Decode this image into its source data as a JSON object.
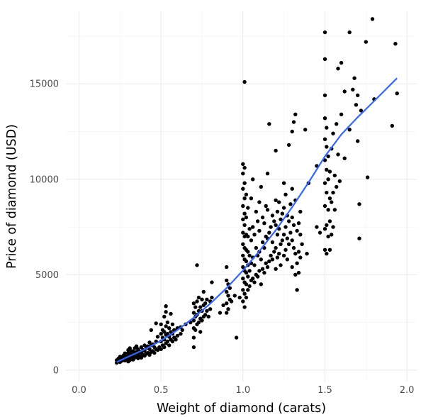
{
  "chart_data": {
    "type": "scatter",
    "title": "",
    "xlabel": "Weight of diamond (carats)",
    "ylabel": "Price of diamond (USD)",
    "xlim": [
      -0.08,
      2.06
    ],
    "ylim": [
      -600,
      18800
    ],
    "x_ticks": [
      0.0,
      0.5,
      1.0,
      1.5,
      2.0
    ],
    "x_tick_labels": [
      "0.0",
      "0.5",
      "1.0",
      "1.5",
      "2.0"
    ],
    "y_ticks": [
      0,
      5000,
      10000,
      15000
    ],
    "y_tick_labels": [
      "0",
      "5000",
      "10000",
      "15000"
    ],
    "grid": true,
    "legend": "none",
    "point_color": "#000000",
    "smooth_color": "#3366ff",
    "points": [
      [
        0.23,
        380
      ],
      [
        0.23,
        520
      ],
      [
        0.24,
        460
      ],
      [
        0.24,
        600
      ],
      [
        0.25,
        420
      ],
      [
        0.25,
        560
      ],
      [
        0.25,
        700
      ],
      [
        0.26,
        480
      ],
      [
        0.26,
        640
      ],
      [
        0.27,
        520
      ],
      [
        0.27,
        760
      ],
      [
        0.28,
        500
      ],
      [
        0.28,
        650
      ],
      [
        0.28,
        880
      ],
      [
        0.29,
        560
      ],
      [
        0.29,
        720
      ],
      [
        0.3,
        450
      ],
      [
        0.3,
        600
      ],
      [
        0.3,
        750
      ],
      [
        0.3,
        900
      ],
      [
        0.3,
        1050
      ],
      [
        0.31,
        520
      ],
      [
        0.31,
        700
      ],
      [
        0.31,
        950
      ],
      [
        0.31,
        1150
      ],
      [
        0.32,
        600
      ],
      [
        0.32,
        800
      ],
      [
        0.32,
        1000
      ],
      [
        0.33,
        550
      ],
      [
        0.33,
        760
      ],
      [
        0.33,
        980
      ],
      [
        0.34,
        650
      ],
      [
        0.34,
        880
      ],
      [
        0.34,
        1150
      ],
      [
        0.35,
        700
      ],
      [
        0.35,
        950
      ],
      [
        0.35,
        1250
      ],
      [
        0.36,
        620
      ],
      [
        0.36,
        840
      ],
      [
        0.36,
        1100
      ],
      [
        0.37,
        720
      ],
      [
        0.37,
        980
      ],
      [
        0.38,
        650
      ],
      [
        0.38,
        900
      ],
      [
        0.38,
        1200
      ],
      [
        0.39,
        800
      ],
      [
        0.39,
        1050
      ],
      [
        0.4,
        750
      ],
      [
        0.4,
        1000
      ],
      [
        0.4,
        1300
      ],
      [
        0.41,
        850
      ],
      [
        0.41,
        1150
      ],
      [
        0.42,
        900
      ],
      [
        0.42,
        1250
      ],
      [
        0.43,
        800
      ],
      [
        0.43,
        1100
      ],
      [
        0.43,
        1450
      ],
      [
        0.44,
        950
      ],
      [
        0.44,
        1300
      ],
      [
        0.45,
        1000
      ],
      [
        0.45,
        1350
      ],
      [
        0.46,
        900
      ],
      [
        0.46,
        1200
      ],
      [
        0.47,
        1100
      ],
      [
        0.47,
        1500
      ],
      [
        0.48,
        1050
      ],
      [
        0.49,
        1200
      ],
      [
        0.5,
        1100
      ],
      [
        0.5,
        1500
      ],
      [
        0.5,
        1900
      ],
      [
        0.5,
        2400
      ],
      [
        0.51,
        1300
      ],
      [
        0.51,
        1700
      ],
      [
        0.51,
        2100
      ],
      [
        0.52,
        1200
      ],
      [
        0.52,
        1600
      ],
      [
        0.52,
        2000
      ],
      [
        0.53,
        1400
      ],
      [
        0.53,
        1850
      ],
      [
        0.53,
        2300
      ],
      [
        0.54,
        1500
      ],
      [
        0.54,
        1900
      ],
      [
        0.54,
        2500
      ],
      [
        0.55,
        1300
      ],
      [
        0.55,
        1750
      ],
      [
        0.55,
        2200
      ],
      [
        0.56,
        1600
      ],
      [
        0.56,
        2000
      ],
      [
        0.57,
        1500
      ],
      [
        0.57,
        1900
      ],
      [
        0.57,
        2400
      ],
      [
        0.58,
        1700
      ],
      [
        0.58,
        2100
      ],
      [
        0.59,
        1600
      ],
      [
        0.6,
        1800
      ],
      [
        0.6,
        2200
      ],
      [
        0.52,
        2800
      ],
      [
        0.53,
        3350
      ],
      [
        0.56,
        2950
      ],
      [
        0.47,
        2450
      ],
      [
        0.44,
        2100
      ],
      [
        0.48,
        1750
      ],
      [
        0.53,
        3050
      ],
      [
        0.62,
        1900
      ],
      [
        0.62,
        2250
      ],
      [
        0.63,
        2100
      ],
      [
        0.65,
        2400
      ],
      [
        0.68,
        2500
      ],
      [
        0.7,
        1700
      ],
      [
        0.7,
        2200
      ],
      [
        0.7,
        2600
      ],
      [
        0.7,
        3000
      ],
      [
        0.7,
        3500
      ],
      [
        0.71,
        2100
      ],
      [
        0.71,
        2800
      ],
      [
        0.71,
        3300
      ],
      [
        0.72,
        2400
      ],
      [
        0.72,
        2900
      ],
      [
        0.72,
        3600
      ],
      [
        0.73,
        2500
      ],
      [
        0.73,
        3100
      ],
      [
        0.73,
        3800
      ],
      [
        0.74,
        2700
      ],
      [
        0.74,
        3300
      ],
      [
        0.75,
        2600
      ],
      [
        0.75,
        3100
      ],
      [
        0.75,
        3700
      ],
      [
        0.76,
        2800
      ],
      [
        0.76,
        3400
      ],
      [
        0.77,
        2900
      ],
      [
        0.77,
        3500
      ],
      [
        0.78,
        3100
      ],
      [
        0.78,
        3700
      ],
      [
        0.79,
        2800
      ],
      [
        0.8,
        3200
      ],
      [
        0.8,
        3600
      ],
      [
        0.72,
        5500
      ],
      [
        0.7,
        1200
      ],
      [
        0.74,
        2000
      ],
      [
        0.76,
        4100
      ],
      [
        0.81,
        3800
      ],
      [
        0.81,
        4600
      ],
      [
        0.86,
        3000
      ],
      [
        0.88,
        3400
      ],
      [
        0.9,
        3000
      ],
      [
        0.9,
        3500
      ],
      [
        0.9,
        4100
      ],
      [
        0.9,
        4700
      ],
      [
        0.9,
        5400
      ],
      [
        0.91,
        3200
      ],
      [
        0.91,
        3900
      ],
      [
        0.91,
        4500
      ],
      [
        0.92,
        3700
      ],
      [
        0.92,
        4300
      ],
      [
        0.93,
        3600
      ],
      [
        0.95,
        3900
      ],
      [
        0.96,
        1700
      ],
      [
        0.98,
        3800
      ],
      [
        1.0,
        3600
      ],
      [
        1.0,
        4200
      ],
      [
        1.0,
        4800
      ],
      [
        1.0,
        5400
      ],
      [
        1.0,
        6000
      ],
      [
        1.0,
        6600
      ],
      [
        1.0,
        7200
      ],
      [
        1.0,
        7900
      ],
      [
        1.0,
        8600
      ],
      [
        1.0,
        9500
      ],
      [
        1.0,
        10300
      ],
      [
        1.0,
        10800
      ],
      [
        1.01,
        3300
      ],
      [
        1.01,
        4000
      ],
      [
        1.01,
        4600
      ],
      [
        1.01,
        5200
      ],
      [
        1.01,
        5800
      ],
      [
        1.01,
        6400
      ],
      [
        1.01,
        7000
      ],
      [
        1.01,
        7600
      ],
      [
        1.01,
        8200
      ],
      [
        1.01,
        9000
      ],
      [
        1.01,
        9800
      ],
      [
        1.01,
        10600
      ],
      [
        1.01,
        15100
      ],
      [
        1.02,
        3800
      ],
      [
        1.02,
        4500
      ],
      [
        1.02,
        5100
      ],
      [
        1.02,
        5700
      ],
      [
        1.02,
        6300
      ],
      [
        1.02,
        7100
      ],
      [
        1.02,
        8000
      ],
      [
        1.02,
        9200
      ],
      [
        1.03,
        4200
      ],
      [
        1.03,
        4900
      ],
      [
        1.03,
        5500
      ],
      [
        1.03,
        6200
      ],
      [
        1.03,
        7000
      ],
      [
        1.03,
        8500
      ],
      [
        1.04,
        4400
      ],
      [
        1.04,
        5200
      ],
      [
        1.04,
        6000
      ],
      [
        1.04,
        7400
      ],
      [
        1.05,
        4700
      ],
      [
        1.05,
        5600
      ],
      [
        1.05,
        6800
      ],
      [
        1.05,
        9000
      ],
      [
        1.06,
        4800
      ],
      [
        1.06,
        5900
      ],
      [
        1.06,
        7500
      ],
      [
        1.06,
        10000
      ],
      [
        1.07,
        4600
      ],
      [
        1.07,
        5500
      ],
      [
        1.07,
        7100
      ],
      [
        1.08,
        5000
      ],
      [
        1.08,
        6400
      ],
      [
        1.08,
        8300
      ],
      [
        1.09,
        4900
      ],
      [
        1.09,
        6000
      ],
      [
        1.09,
        7800
      ],
      [
        1.1,
        5200
      ],
      [
        1.1,
        6200
      ],
      [
        1.1,
        7300
      ],
      [
        1.1,
        8800
      ],
      [
        1.11,
        4500
      ],
      [
        1.11,
        5800
      ],
      [
        1.11,
        9600
      ],
      [
        1.12,
        5300
      ],
      [
        1.12,
        6700
      ],
      [
        1.12,
        8000
      ],
      [
        1.13,
        5100
      ],
      [
        1.13,
        6400
      ],
      [
        1.13,
        7700
      ],
      [
        1.14,
        5600
      ],
      [
        1.14,
        7000
      ],
      [
        1.14,
        8600
      ],
      [
        1.15,
        5400
      ],
      [
        1.15,
        6900
      ],
      [
        1.15,
        8400
      ],
      [
        1.15,
        10300
      ],
      [
        1.16,
        5700
      ],
      [
        1.16,
        7200
      ],
      [
        1.16,
        12900
      ],
      [
        1.17,
        6000
      ],
      [
        1.17,
        7500
      ],
      [
        1.18,
        5800
      ],
      [
        1.18,
        6700
      ],
      [
        1.18,
        8100
      ],
      [
        1.19,
        6200
      ],
      [
        1.19,
        7800
      ],
      [
        1.2,
        5300
      ],
      [
        1.2,
        6400
      ],
      [
        1.2,
        7600
      ],
      [
        1.2,
        8900
      ],
      [
        1.2,
        11500
      ],
      [
        1.21,
        5900
      ],
      [
        1.21,
        7100
      ],
      [
        1.21,
        8300
      ],
      [
        1.22,
        6100
      ],
      [
        1.22,
        7400
      ],
      [
        1.22,
        8800
      ],
      [
        1.23,
        5500
      ],
      [
        1.23,
        6600
      ],
      [
        1.23,
        7900
      ],
      [
        1.24,
        6800
      ],
      [
        1.24,
        8200
      ],
      [
        1.25,
        6000
      ],
      [
        1.25,
        7100
      ],
      [
        1.25,
        8500
      ],
      [
        1.25,
        9800
      ],
      [
        1.26,
        6300
      ],
      [
        1.26,
        7500
      ],
      [
        1.26,
        9200
      ],
      [
        1.27,
        5800
      ],
      [
        1.27,
        6900
      ],
      [
        1.27,
        8100
      ],
      [
        1.28,
        6600
      ],
      [
        1.28,
        7800
      ],
      [
        1.28,
        11800
      ],
      [
        1.29,
        7200
      ],
      [
        1.29,
        8700
      ],
      [
        1.3,
        5400
      ],
      [
        1.3,
        6800
      ],
      [
        1.3,
        8000
      ],
      [
        1.3,
        9500
      ],
      [
        1.3,
        12500
      ],
      [
        1.31,
        6400
      ],
      [
        1.31,
        7600
      ],
      [
        1.31,
        13000
      ],
      [
        1.32,
        5000
      ],
      [
        1.32,
        6100
      ],
      [
        1.32,
        8900
      ],
      [
        1.32,
        13400
      ],
      [
        1.33,
        5600
      ],
      [
        1.33,
        7300
      ],
      [
        1.33,
        4200
      ],
      [
        1.34,
        6200
      ],
      [
        1.34,
        7700
      ],
      [
        1.34,
        5100
      ],
      [
        1.35,
        5900
      ],
      [
        1.35,
        7100
      ],
      [
        1.35,
        8300
      ],
      [
        1.36,
        6600
      ],
      [
        1.38,
        12600
      ],
      [
        1.39,
        6100
      ],
      [
        1.4,
        9800
      ],
      [
        1.45,
        10700
      ],
      [
        1.45,
        7500
      ],
      [
        1.47,
        7200
      ],
      [
        1.5,
        6300
      ],
      [
        1.5,
        7400
      ],
      [
        1.5,
        8600
      ],
      [
        1.5,
        9800
      ],
      [
        1.5,
        11000
      ],
      [
        1.5,
        12100
      ],
      [
        1.5,
        13200
      ],
      [
        1.5,
        14400
      ],
      [
        1.5,
        16300
      ],
      [
        1.5,
        17700
      ],
      [
        1.51,
        6100
      ],
      [
        1.51,
        7600
      ],
      [
        1.51,
        9300
      ],
      [
        1.51,
        10500
      ],
      [
        1.51,
        11700
      ],
      [
        1.51,
        12700
      ],
      [
        1.52,
        7000
      ],
      [
        1.52,
        8400
      ],
      [
        1.52,
        10000
      ],
      [
        1.52,
        11200
      ],
      [
        1.53,
        6300
      ],
      [
        1.53,
        7800
      ],
      [
        1.53,
        9000
      ],
      [
        1.53,
        10400
      ],
      [
        1.54,
        7100
      ],
      [
        1.54,
        8800
      ],
      [
        1.54,
        11600
      ],
      [
        1.55,
        7500
      ],
      [
        1.55,
        9300
      ],
      [
        1.55,
        12400
      ],
      [
        1.56,
        8400
      ],
      [
        1.56,
        10200
      ],
      [
        1.57,
        9600
      ],
      [
        1.57,
        12900
      ],
      [
        1.58,
        11300
      ],
      [
        1.58,
        15800
      ],
      [
        1.59,
        9900
      ],
      [
        1.6,
        13400
      ],
      [
        1.6,
        16100
      ],
      [
        1.62,
        11100
      ],
      [
        1.62,
        14600
      ],
      [
        1.65,
        12600
      ],
      [
        1.65,
        17700
      ],
      [
        1.67,
        14700
      ],
      [
        1.68,
        15300
      ],
      [
        1.69,
        13900
      ],
      [
        1.7,
        12000
      ],
      [
        1.7,
        14400
      ],
      [
        1.71,
        6900
      ],
      [
        1.71,
        8700
      ],
      [
        1.72,
        13600
      ],
      [
        1.75,
        17200
      ],
      [
        1.76,
        10100
      ],
      [
        1.79,
        18400
      ],
      [
        1.8,
        14200
      ],
      [
        1.91,
        12800
      ],
      [
        1.93,
        17100
      ],
      [
        1.94,
        14500
      ]
    ],
    "smooth_line": [
      [
        0.23,
        420
      ],
      [
        0.3,
        700
      ],
      [
        0.4,
        1080
      ],
      [
        0.5,
        1540
      ],
      [
        0.6,
        2100
      ],
      [
        0.7,
        2750
      ],
      [
        0.8,
        3480
      ],
      [
        0.9,
        4300
      ],
      [
        1.0,
        5220
      ],
      [
        1.1,
        6230
      ],
      [
        1.2,
        7330
      ],
      [
        1.3,
        8540
      ],
      [
        1.4,
        9830
      ],
      [
        1.5,
        11200
      ],
      [
        1.6,
        12350
      ],
      [
        1.7,
        13250
      ],
      [
        1.8,
        14100
      ],
      [
        1.94,
        15300
      ]
    ]
  }
}
